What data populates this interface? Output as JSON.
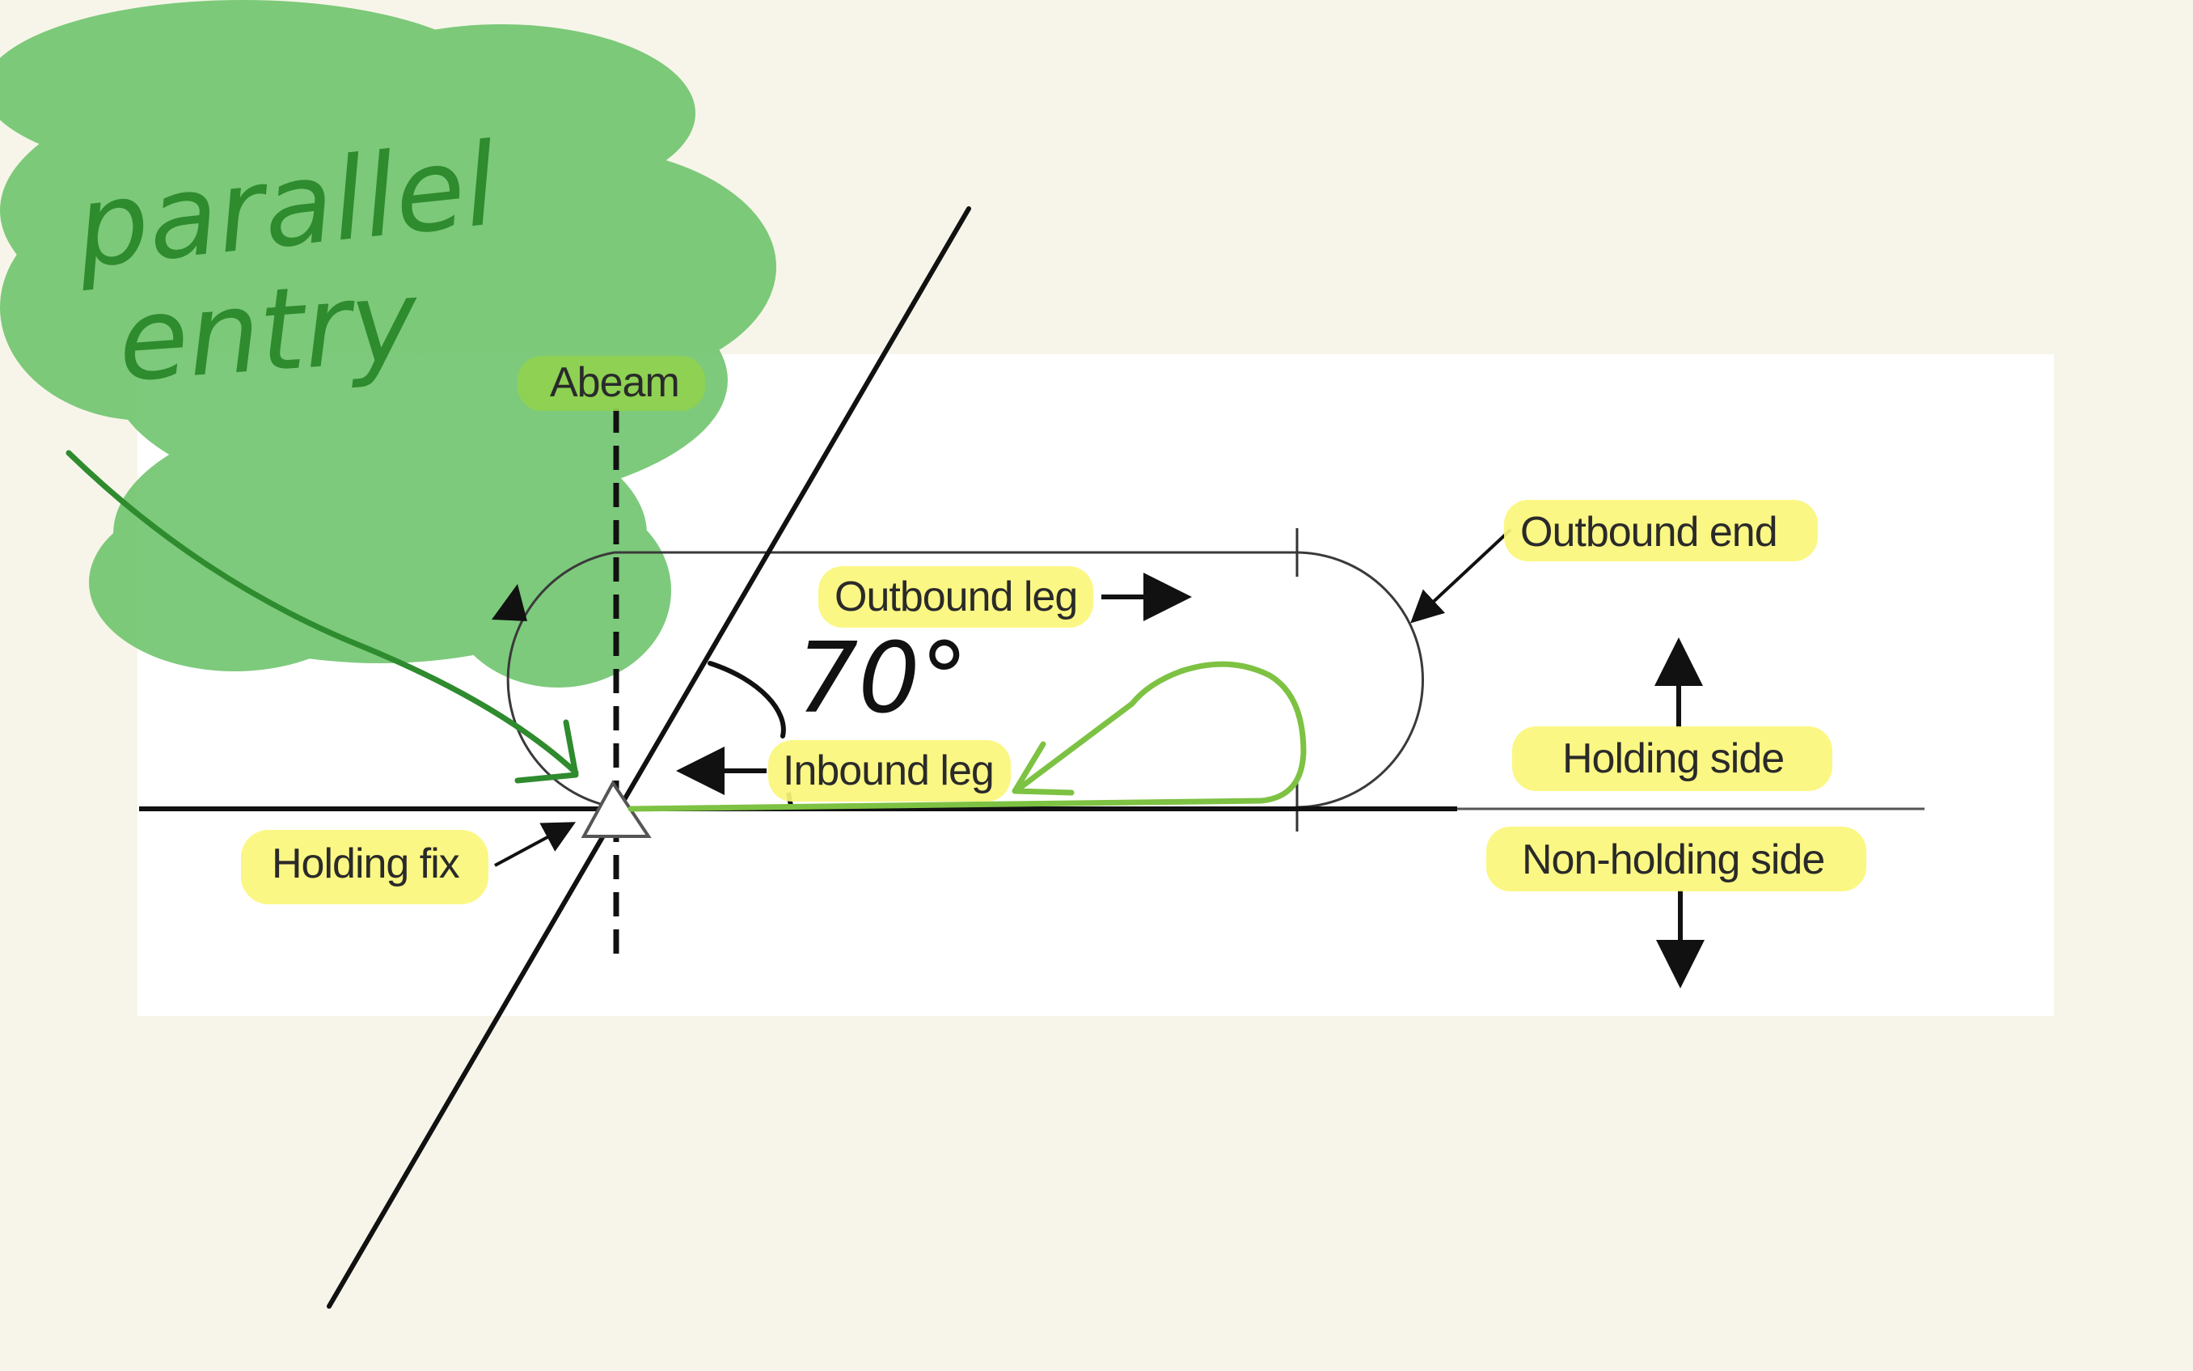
{
  "labels": {
    "abeam": "Abeam",
    "outbound_end": "Outbound end",
    "outbound_leg": "Outbound leg",
    "inbound_leg": "Inbound leg",
    "holding_side": "Holding side",
    "non_holding_side": "Non-holding side",
    "holding_fix": "Holding fix"
  },
  "annotations": {
    "note_line1": "parallel",
    "note_line2": "entry",
    "angle": "70°"
  },
  "colors": {
    "background": "#f7f5e9",
    "panel": "#ffffff",
    "highlight_yellow": "#fbf67a",
    "green_scribble": "#6cc36a",
    "green_ink": "#2e8b2e",
    "green_path": "#7dc242",
    "diagram_line": "#333333"
  }
}
